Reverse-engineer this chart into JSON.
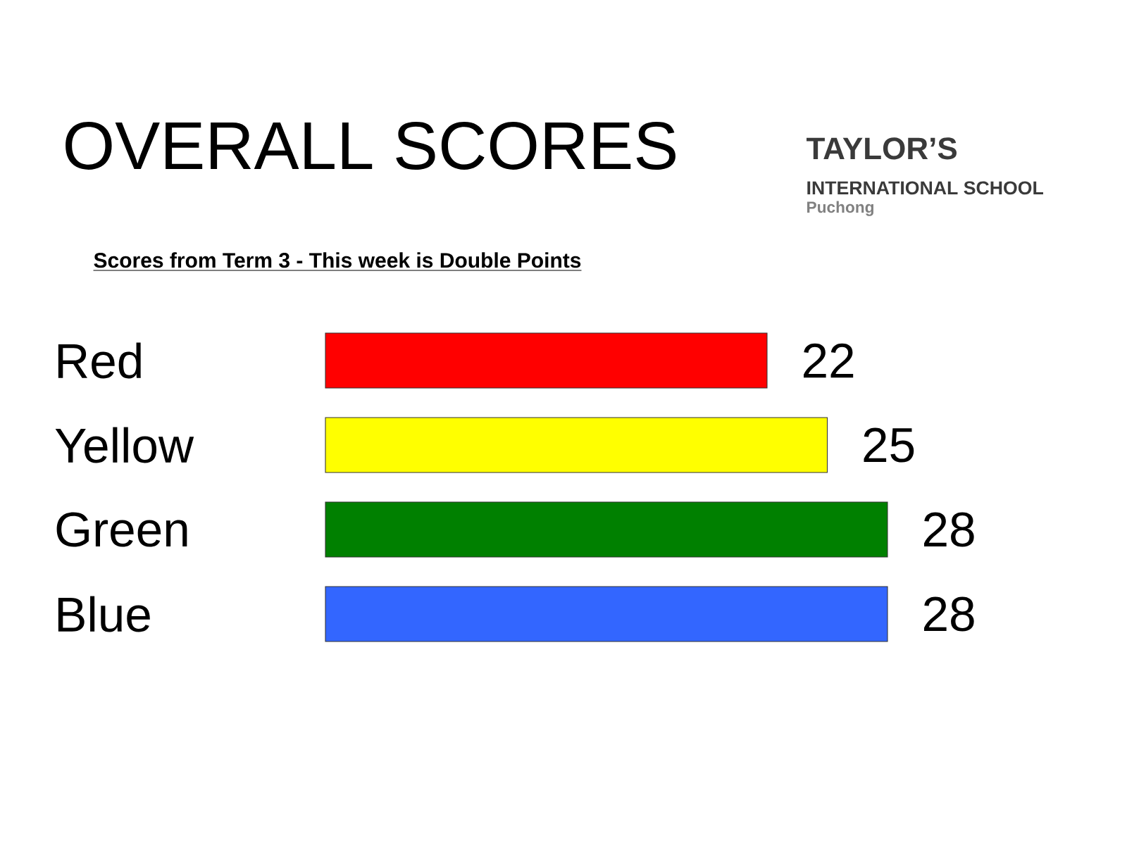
{
  "chart_data": {
    "type": "bar",
    "orientation": "horizontal",
    "title": "OVERALL SCORES",
    "subtitle": "Scores from Term 3 - This week is Double Points",
    "categories": [
      "Red",
      "Yellow",
      "Green",
      "Blue"
    ],
    "values": [
      22,
      25,
      28,
      28
    ],
    "colors": [
      "#ff0000",
      "#ffff00",
      "#008000",
      "#3366ff"
    ],
    "data_labels": true,
    "annotations": [
      "TAYLOR’S",
      "INTERNATIONAL SCHOOL",
      "Puchong"
    ]
  }
}
